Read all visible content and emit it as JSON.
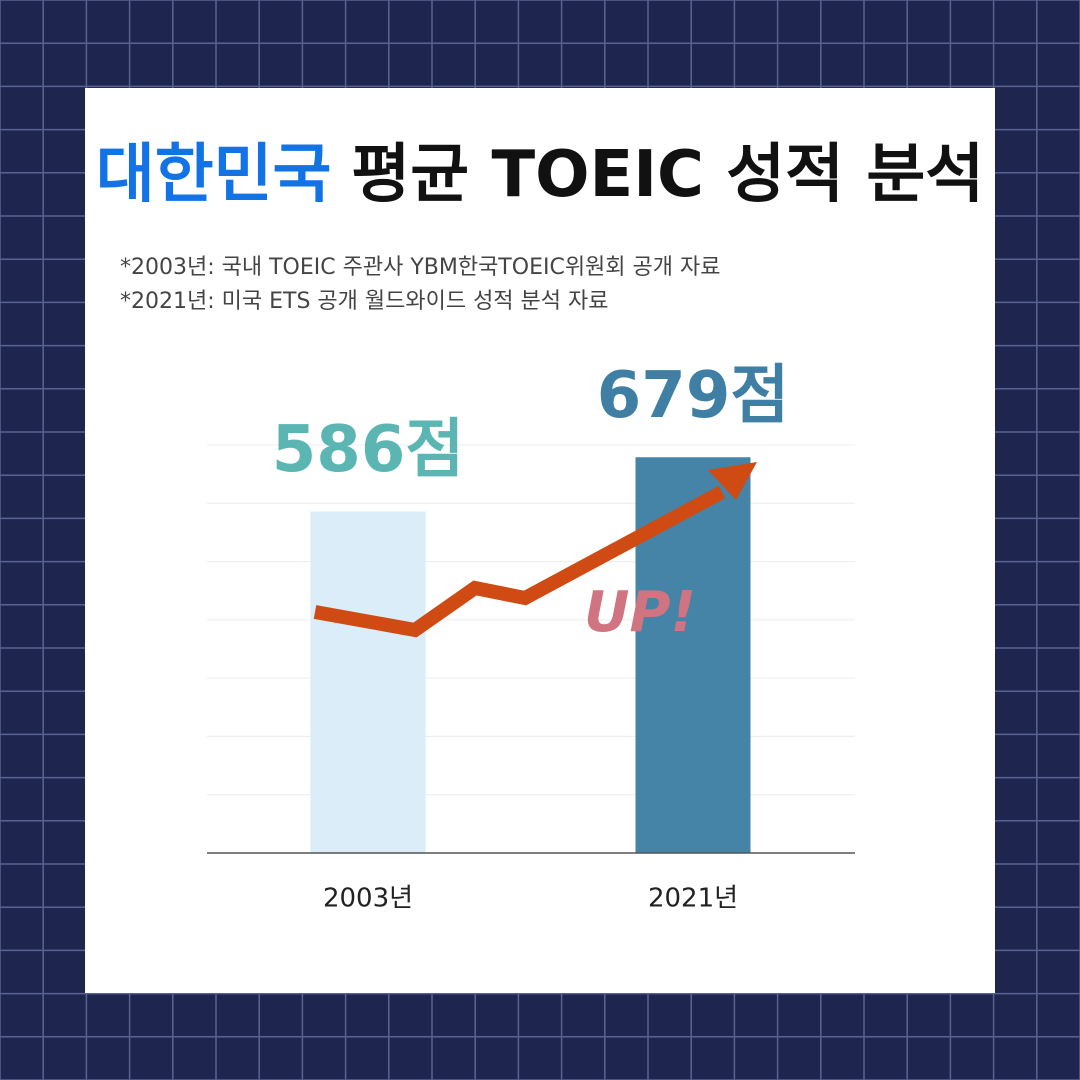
{
  "chart_data": {
    "type": "bar",
    "title": [
      "대한민국",
      "평균 TOEIC 성적 분석"
    ],
    "title_colors": [
      "#1273e6",
      "#111111"
    ],
    "notes": [
      "*2003년: 국내 TOEIC 주관사 YBM한국TOEIC위원회 공개 자료",
      "*2021년: 미국 ETS 공개 월드와이드 성적 분석 자료"
    ],
    "categories": [
      "2003년",
      "2021년"
    ],
    "values": [
      586,
      679
    ],
    "value_labels": [
      "586점",
      "679점"
    ],
    "colors": [
      "#daedf8",
      "#4584a6"
    ],
    "label_colors": [
      "#5bb5b3",
      "#3f7fa3"
    ],
    "annotation": "UP!",
    "ylim": [
      0,
      700
    ],
    "yticks": [
      0,
      100,
      200,
      300,
      400,
      500,
      600,
      700
    ],
    "grid": true
  }
}
